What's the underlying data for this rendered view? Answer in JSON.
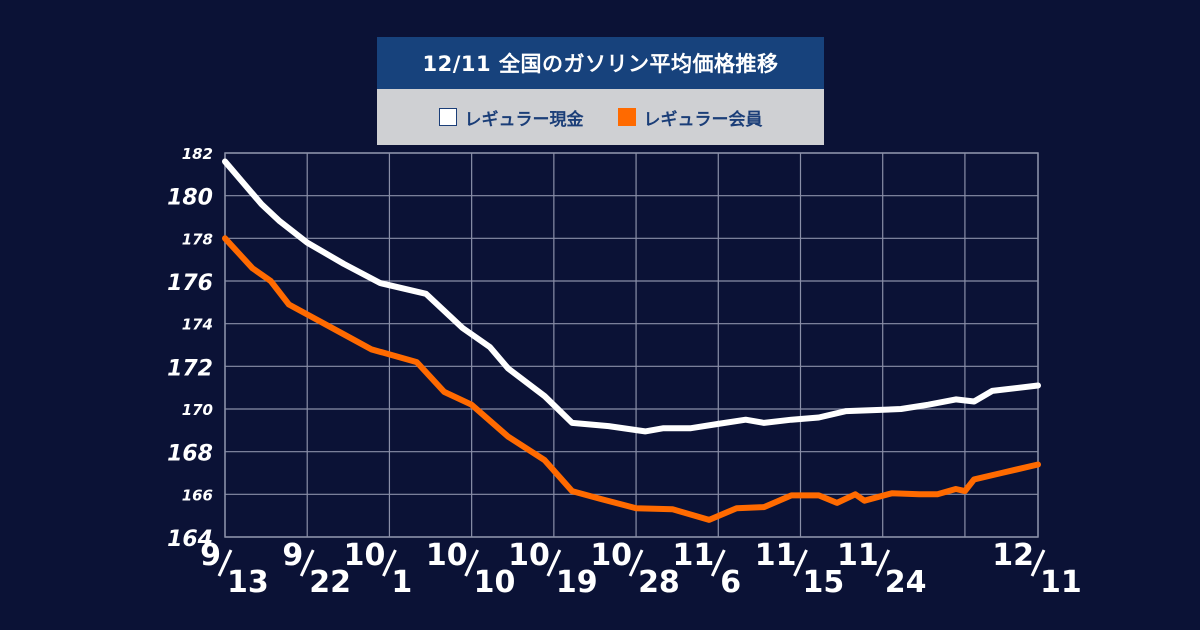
{
  "chart_data": {
    "type": "line",
    "title": "12/11 全国のガソリン平均価格推移",
    "ylim": [
      164,
      182
    ],
    "yticks": [
      {
        "value": 164,
        "label": "164",
        "size": "large"
      },
      {
        "value": 166,
        "label": "166",
        "size": "small"
      },
      {
        "value": 168,
        "label": "168",
        "size": "large"
      },
      {
        "value": 170,
        "label": "170",
        "size": "small"
      },
      {
        "value": 172,
        "label": "172",
        "size": "large"
      },
      {
        "value": 174,
        "label": "174",
        "size": "small"
      },
      {
        "value": 176,
        "label": "176",
        "size": "large"
      },
      {
        "value": 178,
        "label": "178",
        "size": "small"
      },
      {
        "value": 180,
        "label": "180",
        "size": "large"
      },
      {
        "value": 182,
        "label": "182",
        "size": "small"
      }
    ],
    "xlim": [
      0,
      89
    ],
    "xticks": [
      {
        "day": 0,
        "month": "9",
        "date": "13"
      },
      {
        "day": 9,
        "month": "9",
        "date": "22"
      },
      {
        "day": 18,
        "month": "10",
        "date": "1"
      },
      {
        "day": 27,
        "month": "10",
        "date": "10"
      },
      {
        "day": 36,
        "month": "10",
        "date": "19"
      },
      {
        "day": 45,
        "month": "10",
        "date": "28"
      },
      {
        "day": 54,
        "month": "11",
        "date": "6"
      },
      {
        "day": 63,
        "month": "11",
        "date": "15"
      },
      {
        "day": 72,
        "month": "11",
        "date": "24"
      },
      {
        "day": 81,
        "month": "",
        "date": ""
      },
      {
        "day": 89,
        "month": "12",
        "date": "11"
      }
    ],
    "series": [
      {
        "name": "レギュラー現金",
        "color": "#ffffff",
        "points": [
          [
            0,
            181.6
          ],
          [
            2,
            180.6
          ],
          [
            4,
            179.6
          ],
          [
            6,
            178.8
          ],
          [
            9,
            177.8
          ],
          [
            13,
            176.8
          ],
          [
            17,
            175.9
          ],
          [
            22,
            175.4
          ],
          [
            26,
            173.8
          ],
          [
            29,
            172.9
          ],
          [
            31,
            171.9
          ],
          [
            35,
            170.6
          ],
          [
            38,
            169.35
          ],
          [
            42,
            169.2
          ],
          [
            46,
            168.95
          ],
          [
            48,
            169.1
          ],
          [
            51,
            169.1
          ],
          [
            54,
            169.3
          ],
          [
            57,
            169.5
          ],
          [
            59,
            169.35
          ],
          [
            62,
            169.5
          ],
          [
            65,
            169.6
          ],
          [
            68,
            169.9
          ],
          [
            71,
            169.95
          ],
          [
            74,
            170.0
          ],
          [
            77,
            170.2
          ],
          [
            80,
            170.45
          ],
          [
            82,
            170.35
          ],
          [
            84,
            170.85
          ],
          [
            89,
            171.1
          ]
        ]
      },
      {
        "name": "レギュラー会員",
        "color": "#ff6a00",
        "points": [
          [
            0,
            178.0
          ],
          [
            3,
            176.6
          ],
          [
            5,
            176.0
          ],
          [
            7,
            174.9
          ],
          [
            10,
            174.2
          ],
          [
            13,
            173.5
          ],
          [
            16,
            172.8
          ],
          [
            21,
            172.2
          ],
          [
            24,
            170.8
          ],
          [
            27,
            170.2
          ],
          [
            31,
            168.7
          ],
          [
            35,
            167.6
          ],
          [
            38,
            166.15
          ],
          [
            41,
            165.8
          ],
          [
            45,
            165.35
          ],
          [
            49,
            165.3
          ],
          [
            53,
            164.8
          ],
          [
            56,
            165.35
          ],
          [
            59,
            165.4
          ],
          [
            62,
            165.95
          ],
          [
            65,
            165.95
          ],
          [
            67,
            165.6
          ],
          [
            69,
            166.0
          ],
          [
            70,
            165.7
          ],
          [
            73,
            166.05
          ],
          [
            76,
            166.0
          ],
          [
            78,
            166.0
          ],
          [
            80,
            166.25
          ],
          [
            81,
            166.15
          ],
          [
            82,
            166.7
          ],
          [
            85,
            167.0
          ],
          [
            89,
            167.4
          ]
        ]
      }
    ]
  }
}
